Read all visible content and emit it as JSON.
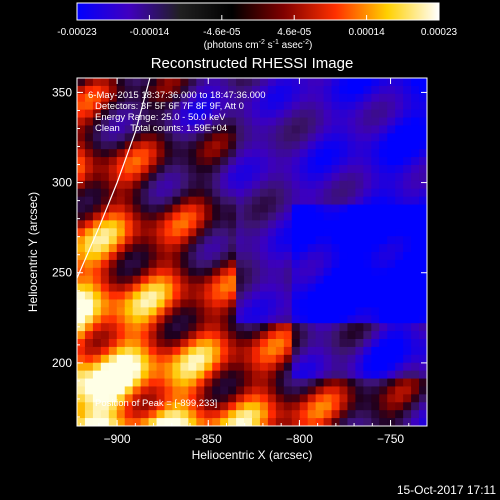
{
  "colorbar": {
    "ticks": [
      "-0.00023",
      "-0.00014",
      "-4.6e-05",
      "4.6e-05",
      "0.00014",
      "0.00023"
    ],
    "units_main": "(photons cm",
    "units_exp1": "-2",
    "units_mid": " s",
    "units_exp2": "-1",
    "units_end": " asec",
    "units_exp3": "-2",
    "units_close": ")",
    "range": [
      -0.00023,
      0.00023
    ],
    "colors": [
      "#0000ff",
      "#4000c0",
      "#202020",
      "#000000",
      "#800000",
      "#ff3000",
      "#ffd000",
      "#ffffff"
    ]
  },
  "chart_data": {
    "type": "heatmap",
    "title": "Reconstructed RHESSI Image",
    "xlabel": "Heliocentric X (arcsec)",
    "ylabel": "Heliocentric Y (arcsec)",
    "xlim": [
      -922,
      -730
    ],
    "ylim": [
      165,
      358
    ],
    "xticks": [
      -900,
      -850,
      -800,
      -750
    ],
    "xtick_labels": [
      "−900",
      "−850",
      "−800",
      "−750"
    ],
    "yticks": [
      200,
      250,
      300,
      350
    ],
    "ytick_labels": [
      "200",
      "250",
      "300",
      "350"
    ],
    "annotations": [
      "6-May-2015 18:37:36.000 to 18:47:36.000",
      "Detectors: 3F 5F 6F 7F 8F 9F, Att 0",
      "Energy Range: 25.0 - 50.0 keV",
      "Clean    Total counts: 1.59E+04"
    ],
    "peak_label": "Position of Peak = [-899,233]",
    "peak_position": [
      -899,
      233
    ],
    "limb_points": [
      [
        -922,
        247
      ],
      [
        -910,
        275
      ],
      [
        -900,
        300
      ],
      [
        -890,
        328
      ],
      [
        -882,
        358
      ]
    ]
  },
  "footer": {
    "date": "15-Oct-2017 17:11"
  }
}
